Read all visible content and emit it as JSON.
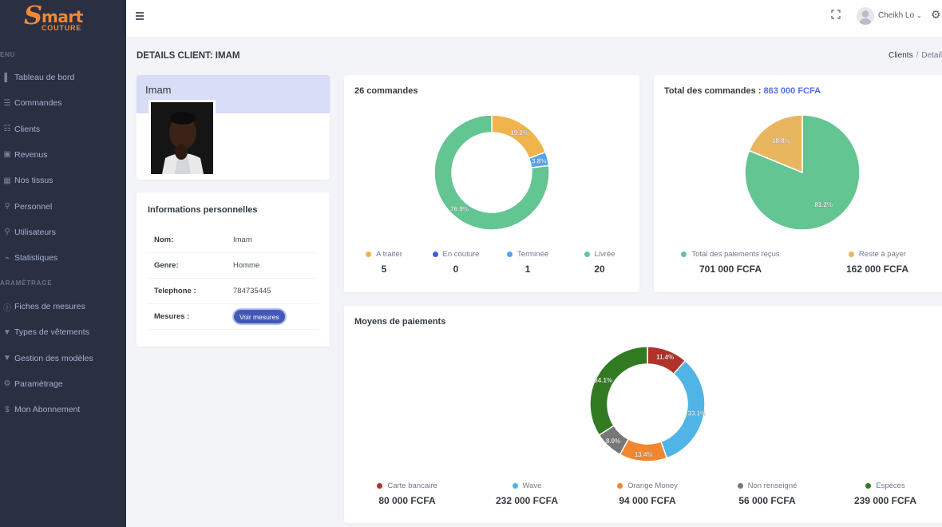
{
  "logo": {
    "s": "S",
    "word": "mart",
    "sub": "COUTURE"
  },
  "sidebar": {
    "menu_title": "ENU",
    "settings_title": "ARAMÈTRAGE",
    "items": [
      {
        "label": "Tableau de bord",
        "icon": "bar-chart-icon",
        "glyph": "▌"
      },
      {
        "label": "Commandes",
        "icon": "list-icon",
        "glyph": "☰"
      },
      {
        "label": "Clients",
        "icon": "users-icon",
        "glyph": "☷"
      },
      {
        "label": "Revenus",
        "icon": "money-icon",
        "glyph": "▣"
      },
      {
        "label": "Nos tissus",
        "icon": "grid-icon",
        "glyph": "▦"
      },
      {
        "label": "Personnel",
        "icon": "person-icon",
        "glyph": "⚲"
      },
      {
        "label": "Utilisateurs",
        "icon": "user-icon",
        "glyph": "⚲"
      },
      {
        "label": "Statistiques",
        "icon": "chart-line-icon",
        "glyph": "⌁"
      }
    ],
    "settings_items": [
      {
        "label": "Fiches de mesures",
        "icon": "info-icon",
        "glyph": "ⓘ"
      },
      {
        "label": "Types de vêtements",
        "icon": "shirt-icon",
        "glyph": "▼"
      },
      {
        "label": "Gestion des modèles",
        "icon": "shirt-icon",
        "glyph": "▼"
      },
      {
        "label": "Paramètrage",
        "icon": "gear-icon",
        "glyph": "⚙"
      },
      {
        "label": "Mon Abonnement",
        "icon": "dollar-icon",
        "glyph": "$"
      }
    ]
  },
  "topbar": {
    "user_name": "Cheikh Lo",
    "chevron": "⌄",
    "gear": "⚙"
  },
  "page": {
    "title": "DETAILS CLIENT: IMAM"
  },
  "breadcrumb": {
    "item1": "Clients",
    "sep": "/",
    "item2": "Details"
  },
  "profile": {
    "name": "Imam"
  },
  "info": {
    "title": "Informations personnelles",
    "rows": [
      {
        "key": "Nom:",
        "value": "Imam"
      },
      {
        "key": "Genre:",
        "value": "Homme"
      },
      {
        "key": "Telephone :",
        "value": "784735445"
      },
      {
        "key": "Mesures :",
        "button": "Voir mesures"
      }
    ]
  },
  "colors": {
    "yellow": "#f1b44c",
    "blue_dark": "#556ee6",
    "blue_light": "#50a5f1",
    "green": "#63c592",
    "red": "#b0332b",
    "wave": "#50b5e6",
    "orange": "#f1862f",
    "grey": "#777777",
    "dark_green": "#317a22"
  },
  "commandes": {
    "title": "26 commandes",
    "legend": [
      {
        "label": "A traiter",
        "value": "5"
      },
      {
        "label": "En couture",
        "value": "0"
      },
      {
        "label": "Terminée",
        "value": "1"
      },
      {
        "label": "Livrée",
        "value": "20"
      }
    ]
  },
  "total": {
    "title_prefix": "Total des commandes : ",
    "title_amount": "863 000 FCFA",
    "legend": [
      {
        "label": "Total des paiements reçus",
        "value": "701 000 FCFA"
      },
      {
        "label": "Reste à payer",
        "value": "162 000 FCFA"
      }
    ]
  },
  "paiements": {
    "title": "Moyens de paiements",
    "legend": [
      {
        "label": "Carte bancaire",
        "value": "80 000 FCFA"
      },
      {
        "label": "Wave",
        "value": "232 000 FCFA"
      },
      {
        "label": "Orange Money",
        "value": "94 000 FCFA"
      },
      {
        "label": "Non renseigné",
        "value": "56 000 FCFA"
      },
      {
        "label": "Espèces",
        "value": "239 000 FCFA"
      }
    ]
  },
  "chart_data": [
    {
      "type": "pie",
      "title": "26 commandes",
      "categories": [
        "A traiter",
        "En couture",
        "Terminée",
        "Livrée"
      ],
      "values": [
        5,
        0,
        1,
        20
      ],
      "labels": [
        "19.2%",
        "",
        "3.8%",
        "76.9%"
      ],
      "colors": [
        "#f1b44c",
        "#556ee6",
        "#50a5f1",
        "#63c592"
      ],
      "donut": true,
      "legend": "bottom"
    },
    {
      "type": "pie",
      "title": "Total des commandes : 863 000 FCFA",
      "categories": [
        "Total des paiements reçus",
        "Reste à payer"
      ],
      "values": [
        701000,
        162000
      ],
      "labels": [
        "81.2%",
        "18.8%"
      ],
      "colors": [
        "#63c592",
        "#e8b65f"
      ],
      "donut": false,
      "legend": "bottom"
    },
    {
      "type": "pie",
      "title": "Moyens de paiements",
      "categories": [
        "Carte bancaire",
        "Wave",
        "Orange Money",
        "Non renseigné",
        "Espèces"
      ],
      "values": [
        80000,
        232000,
        94000,
        56000,
        239000
      ],
      "labels": [
        "11.4%",
        "33.1%",
        "13.4%",
        "8.0%",
        "34.1%"
      ],
      "colors": [
        "#b0332b",
        "#50b5e6",
        "#f1862f",
        "#777777",
        "#317a22"
      ],
      "donut": true,
      "legend": "bottom"
    }
  ]
}
